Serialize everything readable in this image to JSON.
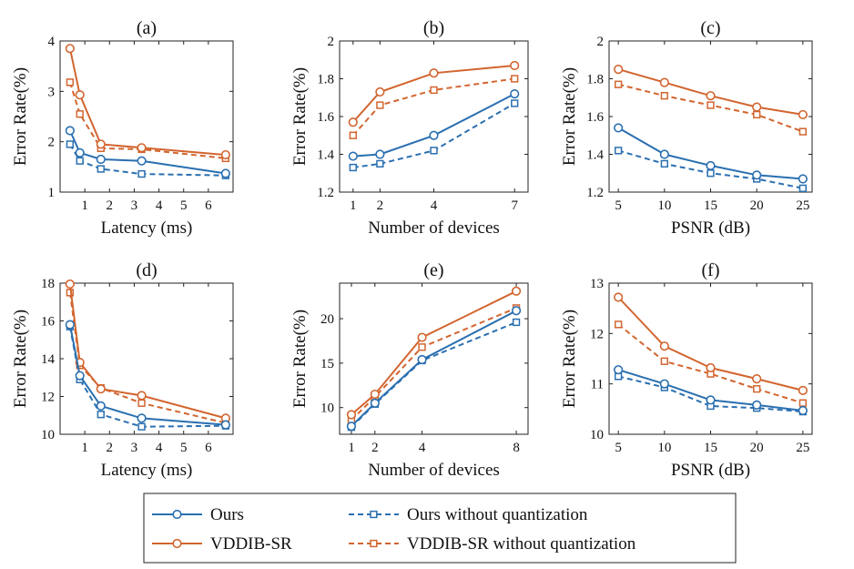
{
  "colors": {
    "ours": "#2a6fb0",
    "vddib": "#d2652f",
    "axis": "#222222"
  },
  "legend": {
    "items": [
      {
        "key": "ours",
        "label": "Ours",
        "color": "#2a6fb0",
        "dashed": false,
        "marker": "circle"
      },
      {
        "key": "ours_nq",
        "label": "Ours without quantization",
        "color": "#2a6fb0",
        "dashed": true,
        "marker": "square"
      },
      {
        "key": "vddib",
        "label": "VDDIB-SR",
        "color": "#d2652f",
        "dashed": false,
        "marker": "circle"
      },
      {
        "key": "vddib_nq",
        "label": "VDDIB-SR without quantization",
        "color": "#d2652f",
        "dashed": true,
        "marker": "square"
      }
    ]
  },
  "chart_data": [
    {
      "id": "a",
      "title": "(a)",
      "type": "line",
      "xlabel": "Latency (ms)",
      "ylabel": "Error Rate(%)",
      "xlim": [
        0,
        7
      ],
      "ylim": [
        1,
        4
      ],
      "xticks": [
        1,
        2,
        3,
        4,
        5,
        6
      ],
      "yticks": [
        1,
        2,
        3,
        4
      ],
      "x": [
        0.4,
        0.8,
        1.65,
        3.3,
        6.7
      ],
      "series": [
        {
          "name": "Ours",
          "values": [
            2.22,
            1.78,
            1.65,
            1.62,
            1.37
          ]
        },
        {
          "name": "VDDIB-SR",
          "values": [
            3.85,
            2.93,
            1.95,
            1.88,
            1.74
          ]
        },
        {
          "name": "Ours without quantization",
          "values": [
            1.95,
            1.62,
            1.46,
            1.36,
            1.33
          ]
        },
        {
          "name": "VDDIB-SR without quantization",
          "values": [
            3.18,
            2.55,
            1.87,
            1.85,
            1.67
          ]
        }
      ]
    },
    {
      "id": "b",
      "title": "(b)",
      "type": "line",
      "xlabel": "Number of devices",
      "ylabel": "Error Rate(%)",
      "xlim": [
        0.5,
        7.5
      ],
      "ylim": [
        1.2,
        2
      ],
      "xticks": [
        1,
        2,
        4,
        7
      ],
      "yticks": [
        1.2,
        1.4,
        1.6,
        1.8,
        2
      ],
      "x": [
        1,
        2,
        4,
        7
      ],
      "series": [
        {
          "name": "Ours",
          "values": [
            1.39,
            1.4,
            1.5,
            1.72
          ]
        },
        {
          "name": "VDDIB-SR",
          "values": [
            1.57,
            1.73,
            1.83,
            1.87
          ]
        },
        {
          "name": "Ours without quantization",
          "values": [
            1.33,
            1.35,
            1.42,
            1.67
          ]
        },
        {
          "name": "VDDIB-SR without quantization",
          "values": [
            1.5,
            1.66,
            1.74,
            1.8
          ]
        }
      ]
    },
    {
      "id": "c",
      "title": "(c)",
      "type": "line",
      "xlabel": "PSNR (dB)",
      "ylabel": "Error Rate(%)",
      "xlim": [
        4,
        26
      ],
      "ylim": [
        1.2,
        2
      ],
      "xticks": [
        5,
        10,
        15,
        20,
        25
      ],
      "yticks": [
        1.2,
        1.4,
        1.6,
        1.8,
        2
      ],
      "x": [
        5,
        10,
        15,
        20,
        25
      ],
      "series": [
        {
          "name": "Ours",
          "values": [
            1.54,
            1.4,
            1.34,
            1.29,
            1.27
          ]
        },
        {
          "name": "VDDIB-SR",
          "values": [
            1.85,
            1.78,
            1.71,
            1.65,
            1.61
          ]
        },
        {
          "name": "Ours without quantization",
          "values": [
            1.42,
            1.35,
            1.3,
            1.27,
            1.22
          ]
        },
        {
          "name": "VDDIB-SR without quantization",
          "values": [
            1.77,
            1.71,
            1.66,
            1.61,
            1.52
          ]
        }
      ]
    },
    {
      "id": "d",
      "title": "(d)",
      "type": "line",
      "xlabel": "Latency (ms)",
      "ylabel": "Error Rate(%)",
      "xlim": [
        0,
        7
      ],
      "ylim": [
        10,
        18
      ],
      "xticks": [
        1,
        2,
        3,
        4,
        5,
        6
      ],
      "yticks": [
        10,
        12,
        14,
        16,
        18
      ],
      "x": [
        0.4,
        0.8,
        1.65,
        3.3,
        6.7
      ],
      "series": [
        {
          "name": "Ours",
          "values": [
            15.8,
            13.1,
            11.5,
            10.85,
            10.5
          ]
        },
        {
          "name": "VDDIB-SR",
          "values": [
            17.95,
            13.8,
            12.4,
            12.05,
            10.85
          ]
        },
        {
          "name": "Ours without quantization",
          "values": [
            15.7,
            12.9,
            11.05,
            10.4,
            10.45
          ]
        },
        {
          "name": "VDDIB-SR without quantization",
          "values": [
            17.5,
            13.65,
            12.45,
            11.65,
            10.6
          ]
        }
      ]
    },
    {
      "id": "e",
      "title": "(e)",
      "type": "line",
      "xlabel": "Number of devices",
      "ylabel": "Error Rate(%)",
      "xlim": [
        0.5,
        8.5
      ],
      "ylim": [
        7,
        24
      ],
      "xticks": [
        1,
        2,
        4,
        8
      ],
      "yticks": [
        10,
        15,
        20
      ],
      "x": [
        1,
        2,
        4,
        8
      ],
      "series": [
        {
          "name": "Ours",
          "values": [
            7.9,
            10.5,
            15.4,
            20.9
          ]
        },
        {
          "name": "VDDIB-SR",
          "values": [
            9.2,
            11.5,
            17.9,
            23.1
          ]
        },
        {
          "name": "Ours without quantization",
          "values": [
            7.8,
            10.4,
            15.3,
            19.6
          ]
        },
        {
          "name": "VDDIB-SR without quantization",
          "values": [
            8.6,
            11.2,
            16.8,
            21.2
          ]
        }
      ]
    },
    {
      "id": "f",
      "title": "(f)",
      "type": "line",
      "xlabel": "PSNR (dB)",
      "ylabel": "Error Rate(%)",
      "xlim": [
        4,
        26
      ],
      "ylim": [
        10,
        13
      ],
      "xticks": [
        5,
        10,
        15,
        20,
        25
      ],
      "yticks": [
        10,
        11,
        12,
        13
      ],
      "x": [
        5,
        10,
        15,
        20,
        25
      ],
      "series": [
        {
          "name": "Ours",
          "values": [
            11.28,
            11.0,
            10.68,
            10.58,
            10.47
          ]
        },
        {
          "name": "VDDIB-SR",
          "values": [
            12.72,
            11.75,
            11.32,
            11.1,
            10.87
          ]
        },
        {
          "name": "Ours without quantization",
          "values": [
            11.15,
            10.93,
            10.56,
            10.52,
            10.45
          ]
        },
        {
          "name": "VDDIB-SR without quantization",
          "values": [
            12.18,
            11.45,
            11.2,
            10.9,
            10.62
          ]
        }
      ]
    }
  ]
}
